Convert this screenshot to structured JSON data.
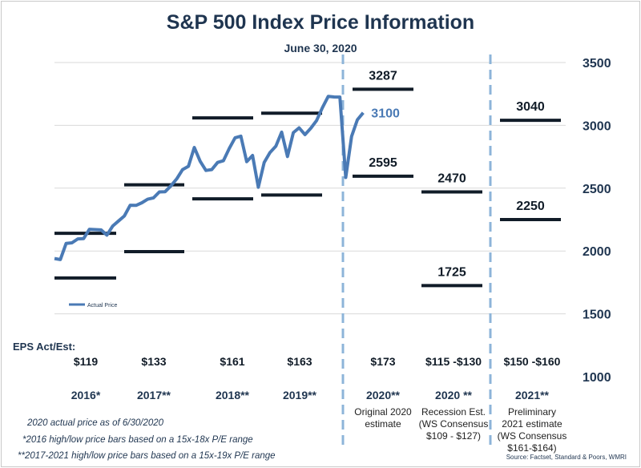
{
  "chart_data": {
    "type": "line",
    "title": "S&P 500 Index Price Information",
    "subtitle": "June 30, 2020",
    "ylim": [
      1000,
      3500
    ],
    "y_ticks": [
      1000,
      1500,
      2000,
      2500,
      3000,
      3500
    ],
    "y_axis_position": "right",
    "grid": true,
    "legend": {
      "label": "Actual Price",
      "placement": "left-middle"
    },
    "series": [
      {
        "name": "Actual Price",
        "color": "#4a7ab5",
        "period": "2016-01 to 2020-06 (monthly)",
        "values": [
          1940,
          1932,
          2060,
          2065,
          2096,
          2098,
          2173,
          2170,
          2168,
          2126,
          2199,
          2239,
          2279,
          2364,
          2363,
          2384,
          2412,
          2423,
          2470,
          2472,
          2519,
          2575,
          2648,
          2674,
          2824,
          2714,
          2641,
          2648,
          2705,
          2718,
          2816,
          2901,
          2914,
          2711,
          2760,
          2507,
          2704,
          2784,
          2834,
          2946,
          2752,
          2942,
          2980,
          2926,
          2977,
          3038,
          3141,
          3231,
          3226,
          3225,
          2585,
          2912,
          3044,
          3100
        ]
      }
    ],
    "last_value_label": "3100",
    "range_bars": [
      {
        "group": "2016*",
        "high": 2141,
        "low": 1785,
        "high_label": "",
        "low_label": ""
      },
      {
        "group": "2017**",
        "high": 2527,
        "low": 1995,
        "high_label": "",
        "low_label": ""
      },
      {
        "group": "2018**",
        "high": 3059,
        "low": 2415,
        "high_label": "",
        "low_label": ""
      },
      {
        "group": "2019**",
        "high": 3097,
        "low": 2445,
        "high_label": "",
        "low_label": ""
      },
      {
        "group": "2020**",
        "high": 3287,
        "low": 2595,
        "high_label": "3287",
        "low_label": "2595"
      },
      {
        "group": "2020 **",
        "high": 2470,
        "low": 1725,
        "high_label": "2470",
        "low_label": "1725"
      },
      {
        "group": "2021**",
        "high": 3040,
        "low": 2250,
        "high_label": "3040",
        "low_label": "2250"
      }
    ],
    "eps_label": "EPS Act/Est:",
    "columns": [
      {
        "eps": "$119",
        "year": "2016*",
        "desc": []
      },
      {
        "eps": "$133",
        "year": "2017**",
        "desc": []
      },
      {
        "eps": "$161",
        "year": "2018**",
        "desc": []
      },
      {
        "eps": "$163",
        "year": "2019**",
        "desc": []
      },
      {
        "eps": "$173",
        "year": "2020**",
        "desc": [
          "Original 2020",
          "estimate"
        ]
      },
      {
        "eps": "$115 -$130",
        "year": "2020 **",
        "desc": [
          "Recession Est.",
          "(WS Consensus",
          "$109 - $127)"
        ]
      },
      {
        "eps": "$150 -$160",
        "year": "2021**",
        "desc": [
          "Preliminary",
          "2021 estimate",
          "(WS Consensus",
          "$161-$164)"
        ]
      }
    ]
  },
  "notes": [
    "2020 actual price as of 6/30/2020",
    "*2016 high/low price bars based on a 15x-18x P/E range",
    "**2017-2021 high/low price bars based on a 15x-19x P/E range"
  ],
  "source": "Source: Factset, Standard & Poors, WMRI",
  "colors": {
    "navy": "#1f3550",
    "line": "#4a7ab5",
    "divider": "#8db4d9",
    "grid": "#d9d9d9",
    "bar": "#111c28"
  }
}
